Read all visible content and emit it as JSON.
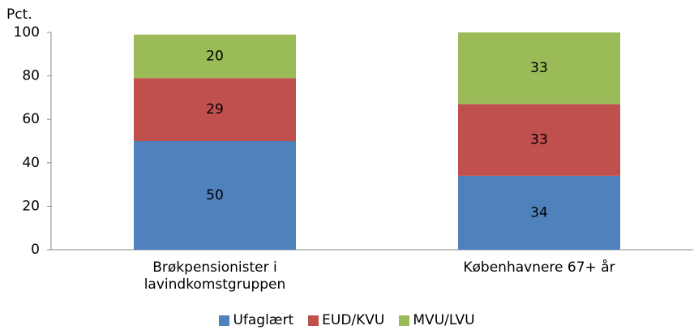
{
  "chart_data": {
    "type": "stacked_bar",
    "y_label": "Pct.",
    "categories": [
      "Brøkpensionister i lavindkomstgruppen",
      "Københavnere 67+ år"
    ],
    "series": [
      {
        "name": "Ufaglært",
        "color": "#4f81bd",
        "values": [
          50,
          34
        ]
      },
      {
        "name": "EUD/KVU",
        "color": "#c0504d",
        "values": [
          29,
          33
        ]
      },
      {
        "name": "MVU/LVU",
        "color": "#9bbb59",
        "values": [
          20,
          33
        ]
      }
    ],
    "ylim": [
      0,
      100
    ],
    "yticks": [
      0,
      20,
      40,
      60,
      80,
      100
    ],
    "legend": "bottom"
  }
}
